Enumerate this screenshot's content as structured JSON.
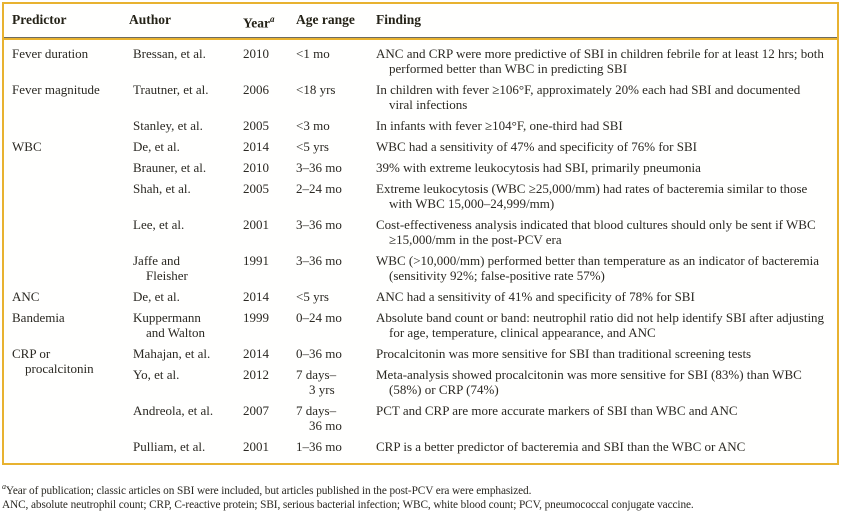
{
  "table": {
    "headers": {
      "predictor": "Predictor",
      "author": "Author",
      "year": "Year",
      "year_sup": "a",
      "age_range": "Age range",
      "finding": "Finding"
    },
    "rows": [
      {
        "predictor": "Fever duration",
        "author": "Bressan, et al.",
        "year": "2010",
        "age": "<1 mo",
        "finding": "ANC and CRP were more predictive of SBI in children febrile for at least 12 hrs; both performed better than WBC in predicting SBI"
      },
      {
        "predictor": "Fever magnitude",
        "author": "Trautner, et al.",
        "year": "2006",
        "age": "<18 yrs",
        "finding": "In children with fever ≥106°F, approximately 20% each had SBI and documented viral infections"
      },
      {
        "author": "Stanley, et al.",
        "year": "2005",
        "age": "<3 mo",
        "finding": "In infants with fever ≥104°F, one-third had SBI"
      },
      {
        "predictor": "WBC",
        "author": "De, et al.",
        "year": "2014",
        "age": "<5 yrs",
        "finding": "WBC had a sensitivity of 47% and specificity of 76% for SBI"
      },
      {
        "author": "Brauner, et al.",
        "year": "2010",
        "age": "3–36 mo",
        "finding": "39% with extreme leukocytosis had SBI, primarily pneumonia"
      },
      {
        "author": "Shah, et al.",
        "year": "2005",
        "age": "2–24 mo",
        "finding": "Extreme leukocytosis (WBC ≥25,000/mm) had rates of bacteremia similar to those with WBC 15,000–24,999/mm)"
      },
      {
        "author": "Lee, et al.",
        "year": "2001",
        "age": "3–36 mo",
        "finding": "Cost-effectiveness analysis indicated that blood cultures should only be sent if WBC ≥15,000/mm in the post-PCV era"
      },
      {
        "author": "Jaffe and\nFleisher",
        "year": "1991",
        "age": "3–36 mo",
        "finding": "WBC (>10,000/mm) performed better than temperature as an indicator of bacteremia (sensitivity 92%; false-positive rate 57%)"
      },
      {
        "predictor": "ANC",
        "author": "De, et al.",
        "year": "2014",
        "age": "<5 yrs",
        "finding": "ANC had a sensitivity of 41% and specificity of 78% for SBI"
      },
      {
        "predictor": "Bandemia",
        "author": "Kuppermann\nand Walton",
        "year": "1999",
        "age": "0–24 mo",
        "finding": "Absolute band count or band: neutrophil ratio did not help identify SBI after adjusting for age, temperature, clinical appearance, and ANC"
      },
      {
        "predictor": "CRP or\nprocalcitonin",
        "author": "Mahajan, et al.",
        "year": "2014",
        "age": "0–36 mo",
        "finding": "Procalcitonin was more sensitive for SBI than traditional screening tests"
      },
      {
        "author": "Yo, et al.",
        "year": "2012",
        "age": "7 days–\n3 yrs",
        "finding": "Meta-analysis showed procalcitonin was more sensitive for SBI (83%) than WBC (58%) or CRP (74%)"
      },
      {
        "author": "Andreola, et al.",
        "year": "2007",
        "age": "7 days–\n36 mo",
        "finding": "PCT and CRP are more accurate markers of SBI than WBC and ANC"
      },
      {
        "author": "Pulliam, et al.",
        "year": "2001",
        "age": "1–36 mo",
        "finding": "CRP is a better predictor of bacteremia and SBI than the WBC or ANC"
      }
    ]
  },
  "footnotes": {
    "sup": "a",
    "line1": "Year of publication; classic articles on SBI were included, but articles published in the post-PCV era were emphasized.",
    "line2": "ANC, absolute neutrophil count; CRP, C-reactive protein; SBI, serious bacterial infection; WBC, white blood count; PCV, pneumococcal conjugate vaccine."
  },
  "colors": {
    "frame_gold": "#E8B230",
    "header_rule": "#6E6C60",
    "text": "#2A2822"
  }
}
